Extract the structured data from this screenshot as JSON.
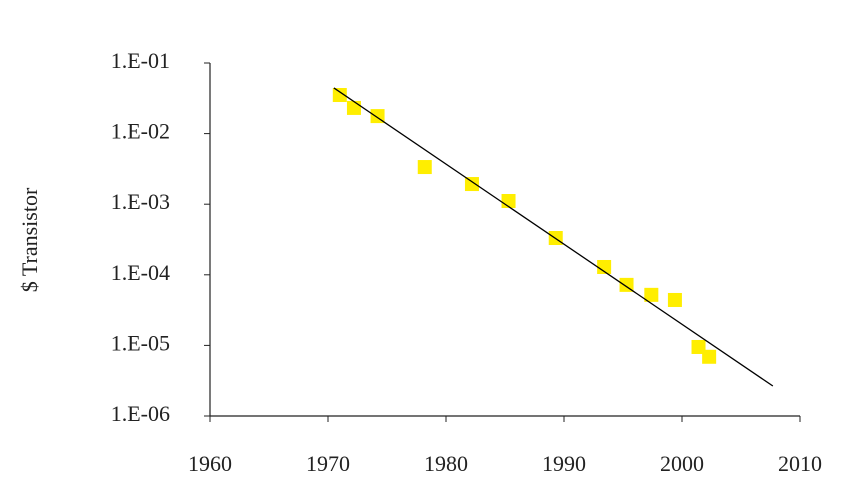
{
  "chart_data": {
    "type": "scatter",
    "y_label": "$ Transistor",
    "y_log": true,
    "xlim": [
      1960,
      2010
    ],
    "xticks": [
      1960,
      1970,
      1980,
      1990,
      2000,
      2010
    ],
    "ylim": [
      1e-06,
      0.1
    ],
    "yticks": [
      {
        "value": 0.1,
        "label": "1.E-01"
      },
      {
        "value": 0.01,
        "label": "1.E-02"
      },
      {
        "value": 0.001,
        "label": "1.E-03"
      },
      {
        "value": 0.0001,
        "label": "1.E-04"
      },
      {
        "value": 1e-05,
        "label": "1.E-05"
      },
      {
        "value": 1e-06,
        "label": "1.E-06"
      }
    ],
    "series": [
      {
        "type": "scatter",
        "color": "#ffee00",
        "marker": "square",
        "x": [
          1971.0,
          1972.2,
          1974.2,
          1978.2,
          1982.2,
          1985.3,
          1989.3,
          1993.4,
          1995.3,
          1997.4,
          1999.4,
          2001.4,
          2002.3
        ],
        "values": [
          0.0352,
          0.0231,
          0.0177,
          0.00336,
          0.00193,
          0.00111,
          0.000332,
          0.000129,
          7.2e-05,
          5.2e-05,
          4.4e-05,
          9.5e-06,
          6.9e-06
        ]
      },
      {
        "type": "line",
        "color": "#000000",
        "x": [
          1970.5,
          2007.7
        ],
        "values": [
          0.0443,
          2.66e-06
        ]
      }
    ]
  }
}
